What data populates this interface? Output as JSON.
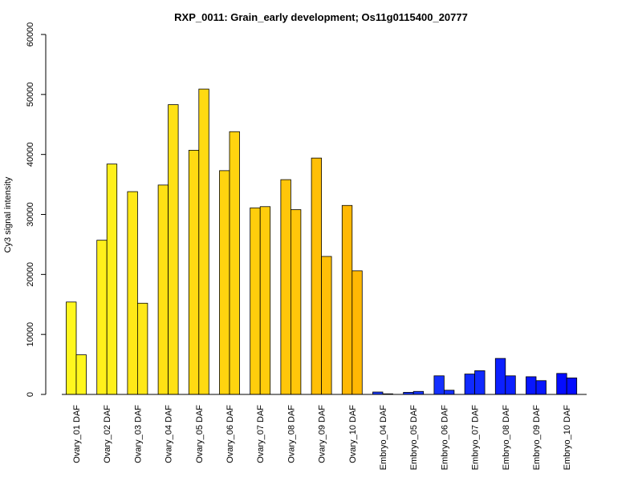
{
  "chart_data": {
    "type": "bar",
    "title": "RXP_0011: Grain_early development; Os11g0115400_20777",
    "xlabel": "",
    "ylabel": "Cy3 signal intensity",
    "ylim": [
      0,
      60000
    ],
    "yticks": [
      0,
      10000,
      20000,
      30000,
      40000,
      50000,
      60000
    ],
    "grid": false,
    "legend": "none",
    "categories": [
      "Ovary_01 DAF",
      "Ovary_02 DAF",
      "Ovary_03 DAF",
      "Ovary_04 DAF",
      "Ovary_05 DAF",
      "Ovary_06 DAF",
      "Ovary_07 DAF",
      "Ovary_08 DAF",
      "Ovary_09 DAF",
      "Ovary_10 DAF",
      "Embryo_04 DAF",
      "Embryo_05 DAF",
      "Embryo_06 DAF",
      "Embryo_07 DAF",
      "Embryo_08 DAF",
      "Embryo_09 DAF",
      "Embryo_10 DAF"
    ],
    "series": [
      {
        "values": [
          15400,
          25700,
          33800,
          34900,
          40700,
          37300,
          31100,
          35800,
          39400,
          31500,
          400,
          350,
          3100,
          3400,
          6000,
          2950,
          3500
        ]
      },
      {
        "values": [
          6600,
          38400,
          15200,
          48300,
          50900,
          43800,
          31300,
          30800,
          23000,
          20600,
          100,
          500,
          700,
          3950,
          3100,
          2300,
          2750
        ]
      }
    ],
    "colors": [
      "#FFF71E",
      "#FFF01B",
      "#FFE817",
      "#FFE114",
      "#FFDA12",
      "#FFD40F",
      "#FFCD0C",
      "#FFC60A",
      "#FFBF07",
      "#FFB804",
      "#1A3CFF",
      "#1736FF",
      "#1430FF",
      "#102AFF",
      "#0C20FF",
      "#0816FF",
      "#040CFF"
    ]
  }
}
